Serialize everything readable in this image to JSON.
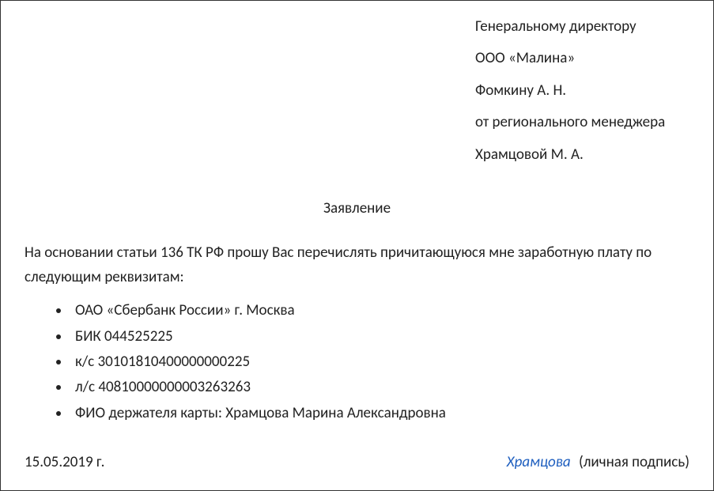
{
  "header": {
    "line1": "Генеральному директору",
    "line2": "ООО «Малина»",
    "line3": "Фомкину А. Н.",
    "line4": "от регионального менеджера",
    "line5": "Храмцовой М. А."
  },
  "title": "Заявление",
  "body": "На основании статьи 136 ТК РФ прошу Вас перечислять причитающуюся мне заработную плату по следующим реквизитам:",
  "details": {
    "item1": "ОАО «Сбербанк России» г. Москва",
    "item2": "БИК 044525225",
    "item3": "к/с 30101810400000000225",
    "item4": "л/с 40810000000003263263",
    "item5": "ФИО держателя карты: Храмцова Марина Александровна"
  },
  "footer": {
    "date": "15.05.2019 г.",
    "signature_name": "Храмцова",
    "signature_note": "(личная подпись)"
  },
  "colors": {
    "text": "#222222",
    "border": "#333333",
    "signature": "#1f5fbf",
    "background": "#ffffff"
  },
  "typography": {
    "font_family": "Calibri",
    "font_size_pt": 14
  }
}
